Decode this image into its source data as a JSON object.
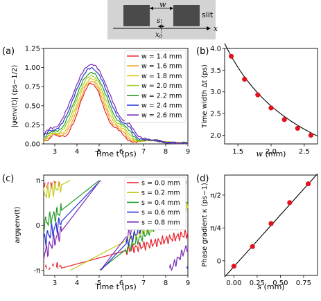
{
  "inset": {
    "w_label": "w",
    "s_label": "s",
    "x0_label": "x",
    "x0_sub": "0",
    "slit_label": "slit",
    "x_label": "x"
  },
  "chart_data": [
    {
      "id": "a",
      "panel_label": "(a)",
      "type": "line",
      "xlabel": "Time t (ps)",
      "ylabel": "|ψenv(t)| (ps−1/2)",
      "xlim": [
        2.5,
        9
      ],
      "ylim": [
        0,
        1.25
      ],
      "xticks": [
        3,
        4,
        5,
        6,
        7,
        8,
        9
      ],
      "xtick_labels": [
        "3",
        "4",
        "5",
        "6",
        "7",
        "8",
        "9"
      ],
      "yticks": [
        0,
        0.25,
        0.5,
        0.75,
        1.0,
        1.25
      ],
      "ytick_labels": [
        "0.00",
        "0.25",
        "0.50",
        "0.75",
        "1.00",
        "1.25"
      ],
      "legend_position": "top-right",
      "series": [
        {
          "name": "w = 1.4 mm",
          "color": "#e8202a",
          "width": 1.4,
          "peak": 0.78
        },
        {
          "name": "w = 1.6 mm",
          "color": "#f0a21c",
          "width": 1.6,
          "peak": 0.81
        },
        {
          "name": "w = 1.8 mm",
          "color": "#dcc81a",
          "width": 1.8,
          "peak": 0.84
        },
        {
          "name": "w = 2.0 mm",
          "color": "#a2cf2a",
          "width": 2.0,
          "peak": 0.88
        },
        {
          "name": "w = 2.2 mm",
          "color": "#239a26",
          "width": 2.2,
          "peak": 0.92
        },
        {
          "name": "w = 2.4 mm",
          "color": "#2132d6",
          "width": 2.4,
          "peak": 0.98
        },
        {
          "name": "w = 2.6 mm",
          "color": "#7b28b4",
          "width": 2.6,
          "peak": 1.03
        }
      ]
    },
    {
      "id": "b",
      "panel_label": "(b)",
      "type": "scatter",
      "xlabel": "w (mm)",
      "ylabel": "Time width Δt (ps)",
      "xlim": [
        1.3,
        2.7
      ],
      "ylim": [
        1.8,
        4.0
      ],
      "xticks": [
        1.5,
        2.0,
        2.5
      ],
      "xtick_labels": [
        "1.5",
        "2.0",
        "2.5"
      ],
      "yticks": [
        2.0,
        2.5,
        3.0,
        3.5,
        4.0
      ],
      "ytick_labels": [
        "2.0",
        "2.5",
        "3.0",
        "3.5",
        "4.0"
      ],
      "x": [
        1.4,
        1.6,
        1.8,
        2.0,
        2.2,
        2.4,
        2.6
      ],
      "y": [
        3.82,
        3.29,
        2.93,
        2.63,
        2.36,
        2.16,
        2.0
      ],
      "marker_color": "#e0141e",
      "fit_color": "#000000"
    },
    {
      "id": "c",
      "panel_label": "(c)",
      "type": "line",
      "xlabel": "Time t (ps)",
      "ylabel": "argψenv(t)",
      "xlim": [
        2.5,
        9
      ],
      "ylim": [
        -3.5,
        3.5
      ],
      "xticks": [
        3,
        4,
        5,
        6,
        7,
        8,
        9
      ],
      "xtick_labels": [
        "3",
        "4",
        "5",
        "6",
        "7",
        "8",
        "9"
      ],
      "yticks": [
        -3.14159,
        0,
        3.14159
      ],
      "ytick_labels": [
        "-π",
        "0",
        "π"
      ],
      "legend_position": "top-right",
      "series": [
        {
          "name": "s = 0.0 mm",
          "color": "#e8202a",
          "s": 0.0
        },
        {
          "name": "s = 0.2 mm",
          "color": "#c6c71c",
          "s": 0.2
        },
        {
          "name": "s = 0.4 mm",
          "color": "#239a26",
          "s": 0.4
        },
        {
          "name": "s = 0.6 mm",
          "color": "#2132d6",
          "s": 0.6
        },
        {
          "name": "s = 0.8 mm",
          "color": "#7b28b4",
          "s": 0.8
        }
      ]
    },
    {
      "id": "d",
      "panel_label": "(d)",
      "type": "scatter",
      "xlabel": "s (mm)",
      "ylabel": "Phase gradient κ (ps−1)",
      "xlim": [
        -0.1,
        0.9
      ],
      "ylim": [
        -0.35,
        2.05
      ],
      "xticks": [
        0.0,
        0.25,
        0.5,
        0.75
      ],
      "xtick_labels": [
        "0.00",
        "0.25",
        "0.50",
        "0.75"
      ],
      "yticks": [
        0,
        0.785,
        1.571
      ],
      "ytick_labels": [
        "0",
        "π/4",
        "π/2"
      ],
      "x": [
        0.0,
        0.2,
        0.4,
        0.6,
        0.8
      ],
      "y": [
        -0.13,
        0.34,
        0.89,
        1.39,
        1.84
      ],
      "marker_color": "#e0141e",
      "fit_color": "#000000"
    }
  ]
}
